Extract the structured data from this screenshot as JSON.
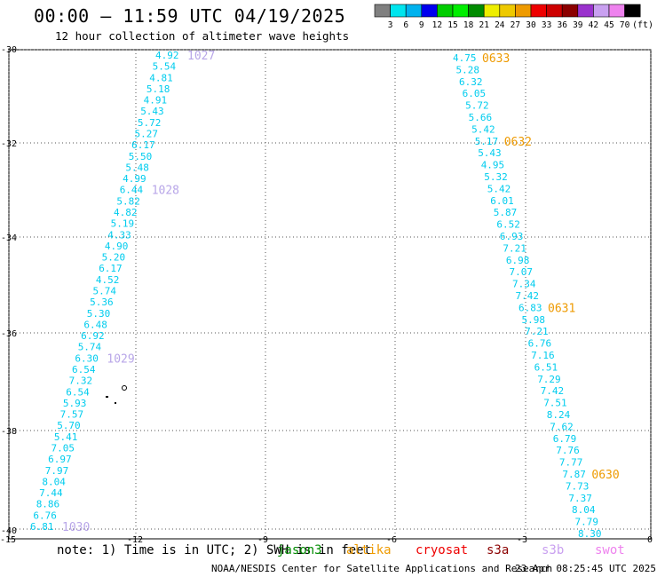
{
  "header": {
    "title": "00:00 – 11:59 UTC 04/19/2025",
    "subtitle": "12 hour collection of altimeter wave heights"
  },
  "legend": {
    "unit": "(ft)",
    "colors": [
      "#808080",
      "#00e5ee",
      "#00b2ee",
      "#0000ee",
      "#00cd00",
      "#00ee00",
      "#008b00",
      "#eeee00",
      "#eec900",
      "#ee9a00",
      "#ee0000",
      "#cd0000",
      "#8b0000",
      "#9a32cd",
      "#c9a0f0",
      "#ee82ee",
      "#000000"
    ],
    "labels": [
      "3",
      "6",
      "9",
      "12",
      "15",
      "18",
      "21",
      "24",
      "27",
      "30",
      "33",
      "36",
      "39",
      "42",
      "45",
      "70"
    ]
  },
  "axes": {
    "lat_labels": [
      "-30",
      "-32",
      "-34",
      "-36",
      "-38",
      "-40"
    ],
    "lon_labels": [
      "-15",
      "-12",
      "-9",
      "-6",
      "-3",
      "0"
    ]
  },
  "tracks": [
    {
      "name": "west",
      "color": "#00ccee",
      "values": [
        "4.92",
        "5.54",
        "4.81",
        "5.18",
        "4.91",
        "5.43",
        "5.72",
        "5.27",
        "6.17",
        "5.50",
        "5.48",
        "4.99",
        "6.44",
        "5.82",
        "4.82",
        "5.19",
        "4.33",
        "4.90",
        "5.20",
        "6.17",
        "4.52",
        "5.74",
        "5.36",
        "5.30",
        "6.48",
        "6.92",
        "5.74",
        "6.30",
        "6.54",
        "7.32",
        "6.54",
        "5.93",
        "7.57",
        "5.70",
        "5.41",
        "7.05",
        "6.97",
        "7.97",
        "8.04",
        "7.44",
        "8.86",
        "6.76",
        "6.81"
      ],
      "times": [
        {
          "label": "1027",
          "color": "#b8a6e8",
          "after": 0
        },
        {
          "label": "1028",
          "color": "#b8a6e8",
          "after": 12
        },
        {
          "label": "1029",
          "color": "#b8a6e8",
          "after": 27
        },
        {
          "label": "1030",
          "color": "#b8a6e8",
          "after": 42
        }
      ]
    },
    {
      "name": "east",
      "color": "#00ccee",
      "values": [
        "4.75",
        "5.28",
        "6.32",
        "6.05",
        "5.72",
        "5.66",
        "5.42",
        "5.17",
        "5.43",
        "4.95",
        "5.32",
        "5.42",
        "6.01",
        "5.87",
        "6.52",
        "6.93",
        "7.21",
        "6.98",
        "7.07",
        "7.34",
        "7.42",
        "6.83",
        "5.98",
        "7.21",
        "6.76",
        "7.16",
        "6.51",
        "7.29",
        "7.42",
        "7.51",
        "8.24",
        "7.62",
        "6.79",
        "7.76",
        "7.77",
        "7.87",
        "7.73",
        "7.37",
        "8.04",
        "7.79",
        "8.30"
      ],
      "times": [
        {
          "label": "0633",
          "color": "#ee9a00",
          "after": 0
        },
        {
          "label": "0632",
          "color": "#ee9a00",
          "after": 7
        },
        {
          "label": "0631",
          "color": "#ee9a00",
          "after": 21
        },
        {
          "label": "0630",
          "color": "#ee9a00",
          "after": 35
        }
      ]
    }
  ],
  "footer": {
    "note": "note:  1) Time is in UTC; 2) SWH is in feet",
    "satellites": [
      {
        "name": "jason3",
        "color": "#008b00"
      },
      {
        "name": "altika",
        "color": "#ee9a00"
      },
      {
        "name": "cryosat",
        "color": "#ee0000"
      },
      {
        "name": "s3a",
        "color": "#8b0000"
      },
      {
        "name": "s3b",
        "color": "#c9a0f0"
      },
      {
        "name": "swot",
        "color": "#ee82ee"
      }
    ],
    "credit": "NOAA/NESDIS Center for Satellite Applications and Research",
    "timestamp": "23 Apr 08:25:45 UTC 2025"
  }
}
